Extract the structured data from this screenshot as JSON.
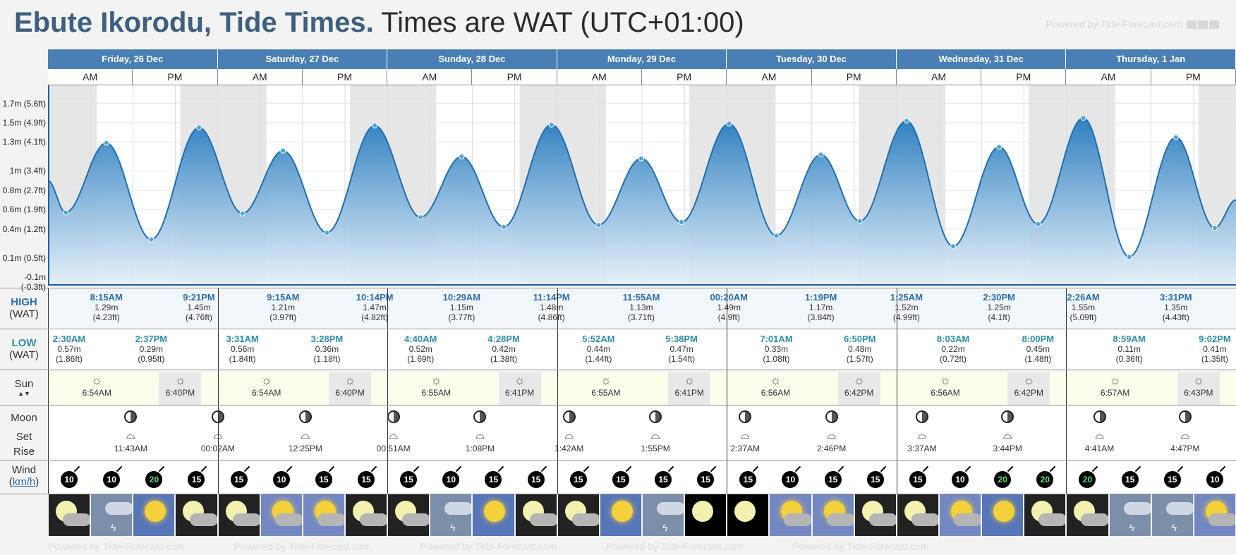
{
  "title": {
    "place": "Ebute Ikorodu, Tide Times.",
    "timezone": "Times are WAT (UTC+01:00)"
  },
  "powered": "Powered by Tide-Forecast.com",
  "labels": {
    "high": "HIGH",
    "high_tz": "(WAT)",
    "low": "LOW",
    "low_tz": "(WAT)",
    "sun": "Sun",
    "moon": "Moon",
    "set": "Set",
    "rise": "Rise",
    "wind": "Wind",
    "wind_unit": "km/h"
  },
  "days": [
    {
      "name": "Friday, 26 Dec"
    },
    {
      "name": "Saturday, 27 Dec"
    },
    {
      "name": "Sunday, 28 Dec"
    },
    {
      "name": "Monday, 29 Dec"
    },
    {
      "name": "Tuesday, 30 Dec"
    },
    {
      "name": "Wednesday, 31 Dec"
    },
    {
      "name": "Thursday, 1 Jan"
    }
  ],
  "ampm": [
    "AM",
    "PM"
  ],
  "y_axis": [
    "1.7m (5.6ft)",
    "1.5m (4.9ft)",
    "1.3m (4.1ft)",
    "1m (3.4ft)",
    "0.8m (2.7ft)",
    "0.6m (1.9ft)",
    "0.4m (1.2ft)",
    "0.1m (0.5ft)",
    "-0.1m (-0.3ft)"
  ],
  "highs": [
    {
      "time": "8:15AM",
      "m": "1.29m",
      "ft": "(4.23ft)"
    },
    {
      "time": "9:21PM",
      "m": "1.45m",
      "ft": "(4.76ft)"
    },
    {
      "time": "9:15AM",
      "m": "1.21m",
      "ft": "(3.97ft)"
    },
    {
      "time": "10:14PM",
      "m": "1.47m",
      "ft": "(4.82ft)"
    },
    {
      "time": "10:29AM",
      "m": "1.15m",
      "ft": "(3.77ft)"
    },
    {
      "time": "11:14PM",
      "m": "1.48m",
      "ft": "(4.86ft)"
    },
    {
      "time": "11:55AM",
      "m": "1.13m",
      "ft": "(3.71ft)"
    },
    {
      "time": "00:20AM",
      "m": "1.49m",
      "ft": "(4.9ft)"
    },
    {
      "time": "1:19PM",
      "m": "1.17m",
      "ft": "(3.84ft)"
    },
    {
      "time": "1:25AM",
      "m": "1.52m",
      "ft": "(4.99ft)"
    },
    {
      "time": "2:30PM",
      "m": "1.25m",
      "ft": "(4.1ft)"
    },
    {
      "time": "2:26AM",
      "m": "1.55m",
      "ft": "(5.09ft)"
    },
    {
      "time": "3:31PM",
      "m": "1.35m",
      "ft": "(4.43ft)"
    }
  ],
  "lows": [
    {
      "time": "2:30AM",
      "m": "0.57m",
      "ft": "(1.86ft)"
    },
    {
      "time": "2:37PM",
      "m": "0.29m",
      "ft": "(0.95ft)"
    },
    {
      "time": "3:31AM",
      "m": "0.56m",
      "ft": "(1.84ft)"
    },
    {
      "time": "3:28PM",
      "m": "0.36m",
      "ft": "(1.18ft)"
    },
    {
      "time": "4:40AM",
      "m": "0.52m",
      "ft": "(1.69ft)"
    },
    {
      "time": "4:28PM",
      "m": "0.42m",
      "ft": "(1.38ft)"
    },
    {
      "time": "5:52AM",
      "m": "0.44m",
      "ft": "(1.44ft)"
    },
    {
      "time": "5:38PM",
      "m": "0.47m",
      "ft": "(1.54ft)"
    },
    {
      "time": "7:01AM",
      "m": "0.33m",
      "ft": "(1.08ft)"
    },
    {
      "time": "6:50PM",
      "m": "0.48m",
      "ft": "(1.57ft)"
    },
    {
      "time": "8:03AM",
      "m": "0.22m",
      "ft": "(0.72ft)"
    },
    {
      "time": "8:00PM",
      "m": "0.45m",
      "ft": "(1.48ft)"
    },
    {
      "time": "8:59AM",
      "m": "0.11m",
      "ft": "(0.36ft)"
    },
    {
      "time": "9:02PM",
      "m": "0.41m",
      "ft": "(1.35ft)"
    }
  ],
  "sun": [
    {
      "rise": "6:54AM",
      "set": "6:40PM"
    },
    {
      "rise": "6:54AM",
      "set": "6:40PM"
    },
    {
      "rise": "6:55AM",
      "set": "6:41PM"
    },
    {
      "rise": "6:55AM",
      "set": "6:41PM"
    },
    {
      "rise": "6:56AM",
      "set": "6:42PM"
    },
    {
      "rise": "6:56AM",
      "set": "6:42PM"
    },
    {
      "rise": "6:57AM",
      "set": "6:43PM"
    }
  ],
  "moon": [
    "11:43AM",
    "00:02AM",
    "12:25PM",
    "00:51AM",
    "1:08PM",
    "1:42AM",
    "1:55PM",
    "2:37AM",
    "2:46PM",
    "3:37AM",
    "3:44PM",
    "4:41AM",
    "4:47PM"
  ],
  "wind": [
    10,
    10,
    20,
    15,
    15,
    10,
    15,
    15,
    15,
    10,
    15,
    15,
    15,
    15,
    15,
    15,
    15,
    10,
    15,
    15,
    15,
    10,
    20,
    20,
    20,
    15,
    15,
    10
  ],
  "weather": [
    "cloudnight",
    "storm",
    "sunny",
    "cloudnight",
    "cloudnight",
    "partsun",
    "partsun",
    "cloudnight",
    "cloudnight",
    "storm",
    "sunny",
    "cloudnight",
    "cloudnight",
    "sunny",
    "storm",
    "night",
    "night",
    "partsun",
    "partsun",
    "cloudnight",
    "cloudnight",
    "partsun",
    "sunny",
    "cloudnight",
    "cloudnight",
    "storm",
    "storm",
    "partsun"
  ],
  "chart_data": {
    "type": "area",
    "ylim": [
      -0.1,
      1.8
    ],
    "peaks_m": [
      0.9,
      0.57,
      1.29,
      0.29,
      1.45,
      0.56,
      1.21,
      0.36,
      1.47,
      0.52,
      1.15,
      0.42,
      1.48,
      0.44,
      1.13,
      0.47,
      1.49,
      0.33,
      1.17,
      0.48,
      1.52,
      0.22,
      1.25,
      0.45,
      1.55,
      0.11,
      1.35,
      0.41,
      0.7
    ],
    "peaks_hours": [
      0,
      2.5,
      8.25,
      14.6,
      21.35,
      27.5,
      33.25,
      39.45,
      46.2,
      52.7,
      58.5,
      64.45,
      71.2,
      77.85,
      83.9,
      89.6,
      96.3,
      103.0,
      109.3,
      114.8,
      121.4,
      128.0,
      134.5,
      140.0,
      146.4,
      152.9,
      159.5,
      165.0,
      168
    ]
  }
}
